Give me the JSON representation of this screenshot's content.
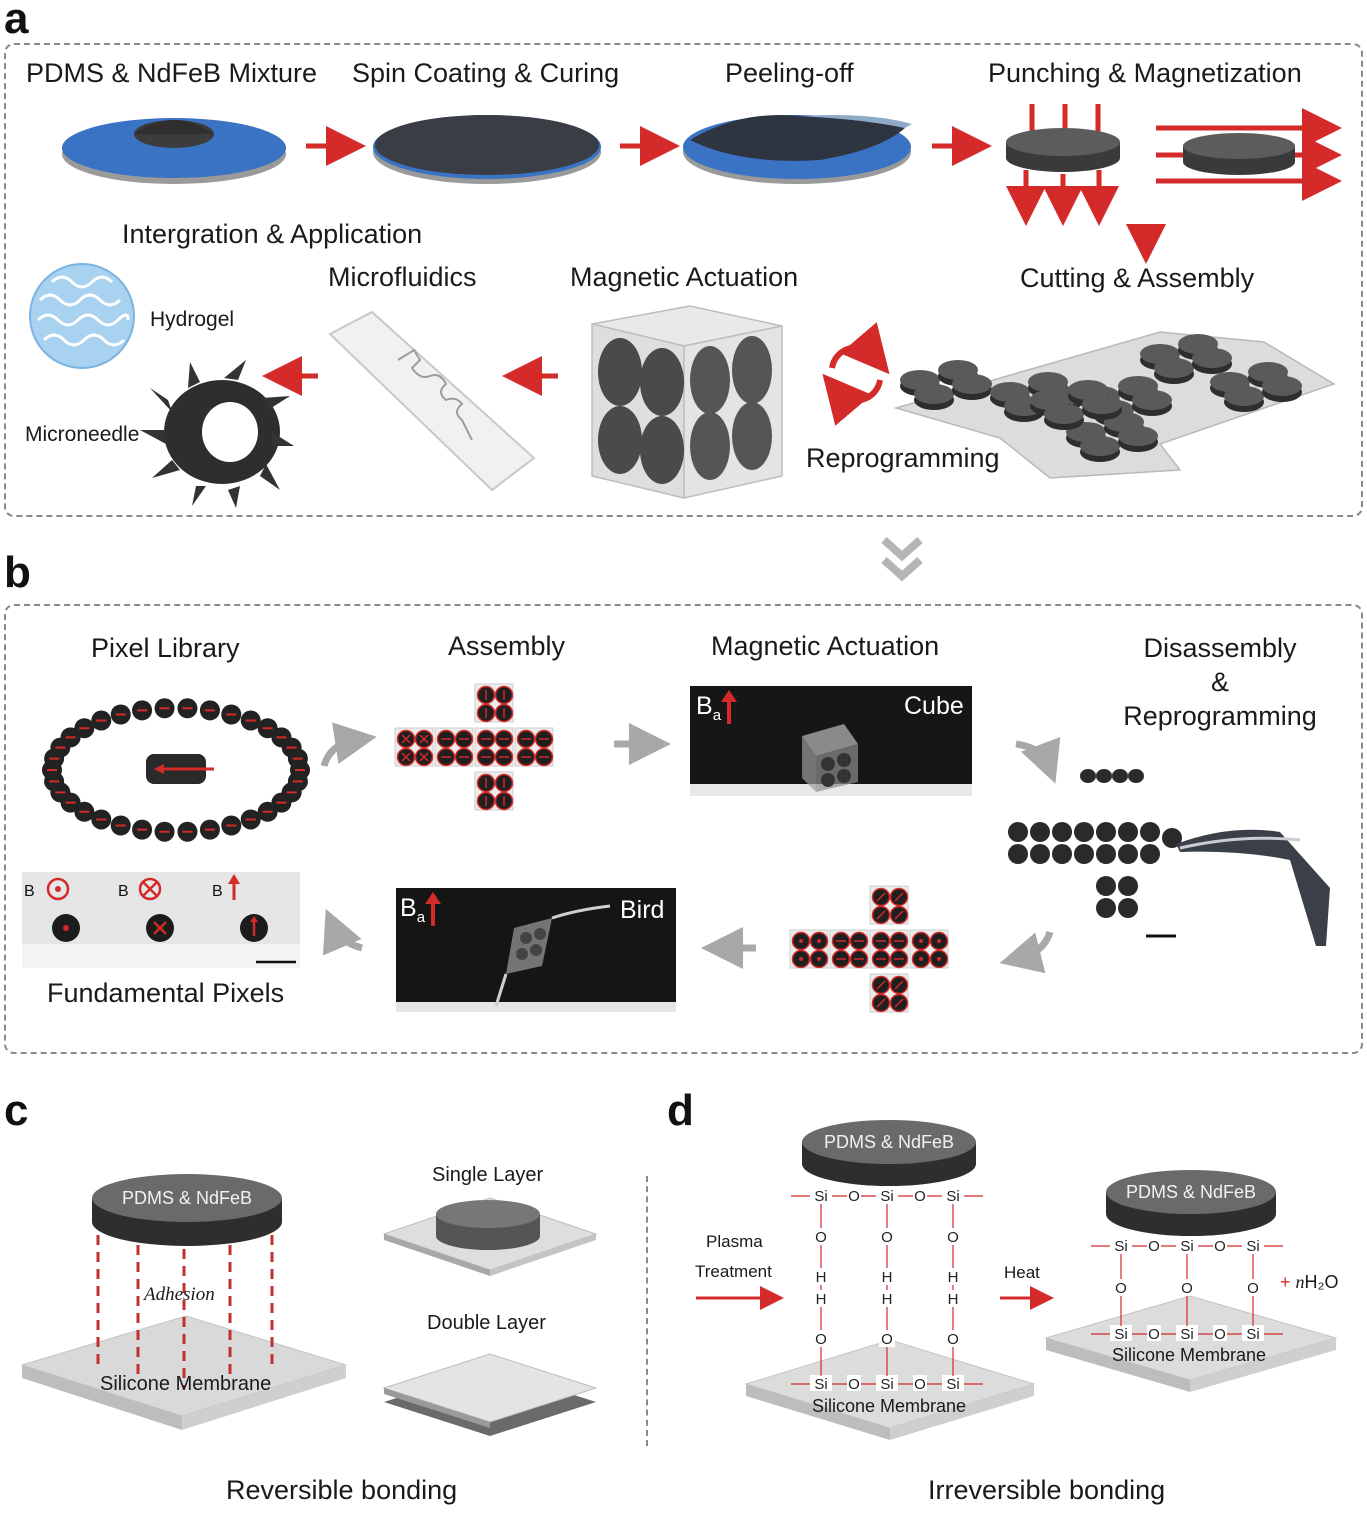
{
  "panels": {
    "a": {
      "letter": "a",
      "steps": [
        "PDMS & NdFeB Mixture",
        "Spin Coating & Curing",
        "Peeling-off",
        "Punching & Magnetization"
      ],
      "integration_title": "Intergration & Application",
      "microfluidics": "Microfluidics",
      "magnetic_actuation": "Magnetic Actuation",
      "cutting_assembly": "Cutting & Assembly",
      "hydrogel": "Hydrogel",
      "microneedle": "Microneedle",
      "reprogramming": "Reprogramming"
    },
    "b": {
      "letter": "b",
      "pixel_library": "Pixel Library",
      "assembly": "Assembly",
      "magnetic_actuation": "Magnetic Actuation",
      "disassembly_line1": "Disassembly",
      "disassembly_line2": "&",
      "disassembly_line3": "Reprogramming",
      "cube_label": "Cube",
      "bird_label": "Bird",
      "field_symbol": "B",
      "field_subscript": "a",
      "fundamental_pixels": "Fundamental Pixels"
    },
    "c": {
      "letter": "c",
      "disc_label": "PDMS & NdFeB",
      "adhesion": "Adhesion",
      "membrane": "Silicone Membrane",
      "single_layer": "Single Layer",
      "double_layer": "Double Layer",
      "caption": "Reversible bonding"
    },
    "d": {
      "letter": "d",
      "disc_label": "PDMS & NdFeB",
      "plasma_line1": "Plasma",
      "plasma_line2": "Treatment",
      "heat": "Heat",
      "byproduct_plus": "+",
      "byproduct_n": "n",
      "byproduct_formula": "H₂O",
      "membrane": "Silicone Membrane",
      "caption": "Irreversible bonding",
      "atoms": {
        "si": "Si",
        "o": "O",
        "h": "H"
      }
    }
  },
  "colors": {
    "arrow_red": "#d42a2a",
    "wafer_blue": "#3b73c4",
    "disc_dark": "#3f3f3f",
    "grey_arrow": "#a8a8a8",
    "dash_border": "#8a8a8a"
  }
}
